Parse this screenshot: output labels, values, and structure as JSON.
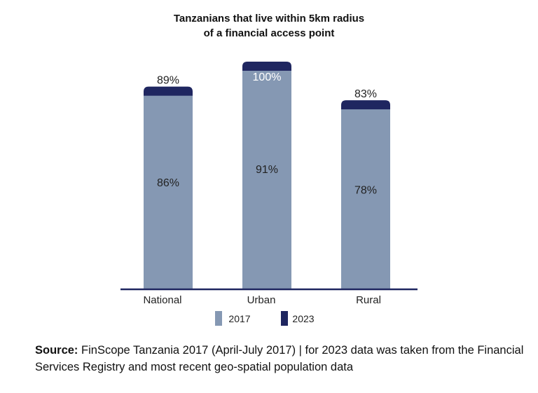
{
  "chart_data": {
    "type": "bar",
    "title_lines": [
      "Tanzanians that live within 5km radius",
      "of a financial access point"
    ],
    "categories": [
      "National",
      "Urban",
      "Rural"
    ],
    "series": [
      {
        "name": "2017",
        "values": [
          86,
          91,
          78
        ],
        "labels": [
          "86%",
          "91%",
          "78%"
        ]
      },
      {
        "name": "2023",
        "values": [
          89,
          100,
          83
        ],
        "labels": [
          "89%",
          "100%",
          "83%"
        ]
      }
    ],
    "ylim": [
      0,
      100
    ],
    "grid": false,
    "legend_position": "bottom",
    "colors": {
      "2017": "#8598b3",
      "2023": "#1f2660",
      "axis": "#1f2660"
    }
  },
  "source": {
    "label": "Source:",
    "text": "FinScope Tanzania 2017 (April-July 2017) | for 2023 data was taken from the Financial Services Registry and most recent geo-spatial population data"
  }
}
